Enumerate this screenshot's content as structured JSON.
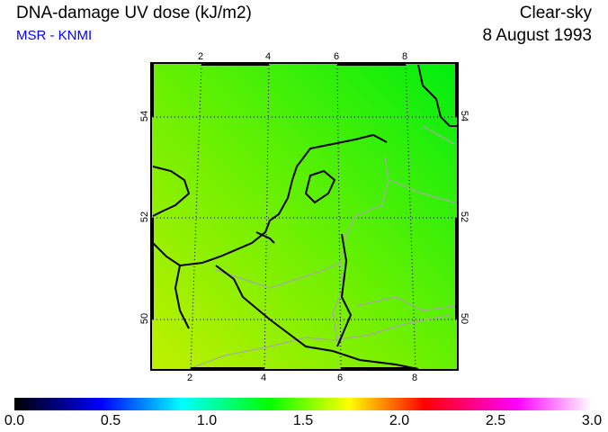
{
  "header": {
    "title": "DNA-damage UV dose (kJ/m2)",
    "credit": "MSR - KNMI",
    "sky": "Clear-sky",
    "date": "8 August 1993"
  },
  "map": {
    "lon_ticks_top": [
      "2",
      "4",
      "6",
      "8"
    ],
    "lon_ticks_bottom": [
      "2",
      "4",
      "6",
      "8"
    ],
    "lat_ticks": [
      "54",
      "52",
      "50"
    ],
    "colors": {
      "low_corner": "#b4f000",
      "high_corner": "#00ee10",
      "coast": "#000000",
      "border": "#a0a0a0"
    }
  },
  "colorbar": {
    "labels": [
      "0.0",
      "0.5",
      "1.0",
      "1.5",
      "2.0",
      "2.5",
      "3.0"
    ],
    "min": 0.0,
    "max": 3.0
  }
}
